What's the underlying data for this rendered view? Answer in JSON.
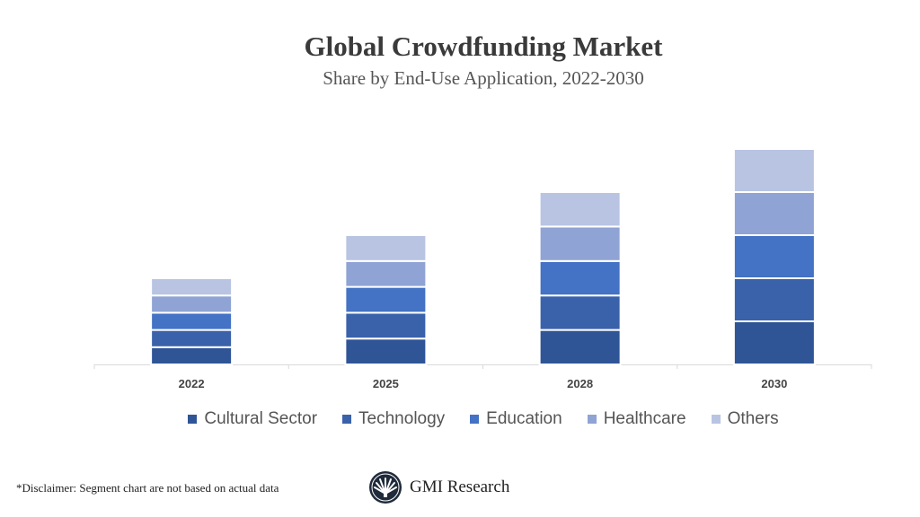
{
  "chart_data": {
    "type": "bar",
    "stacked": true,
    "title": "Global Crowdfunding Market",
    "subtitle": "Share by End-Use Application, 2022-2030",
    "categories": [
      "2022",
      "2025",
      "2028",
      "2030"
    ],
    "series": [
      {
        "name": "Cultural Sector",
        "color": "#2f5597",
        "values": [
          1.0,
          1.5,
          2.0,
          2.5
        ]
      },
      {
        "name": "Technology",
        "color": "#3a62aa",
        "values": [
          1.0,
          1.5,
          2.0,
          2.5
        ]
      },
      {
        "name": "Education",
        "color": "#4472c4",
        "values": [
          1.0,
          1.5,
          2.0,
          2.5
        ]
      },
      {
        "name": "Healthcare",
        "color": "#8fa3d4",
        "values": [
          1.0,
          1.5,
          2.0,
          2.5
        ]
      },
      {
        "name": "Others",
        "color": "#b8c4e2",
        "values": [
          1.0,
          1.5,
          2.0,
          2.5
        ]
      }
    ],
    "ylim": [
      0,
      13
    ],
    "grid": false,
    "y_axis_shown": false,
    "legend": "bottom"
  },
  "footer": {
    "disclaimer": "*Disclaimer:  Segment chart are not based on actual data",
    "logo_text": "GMI Research"
  }
}
